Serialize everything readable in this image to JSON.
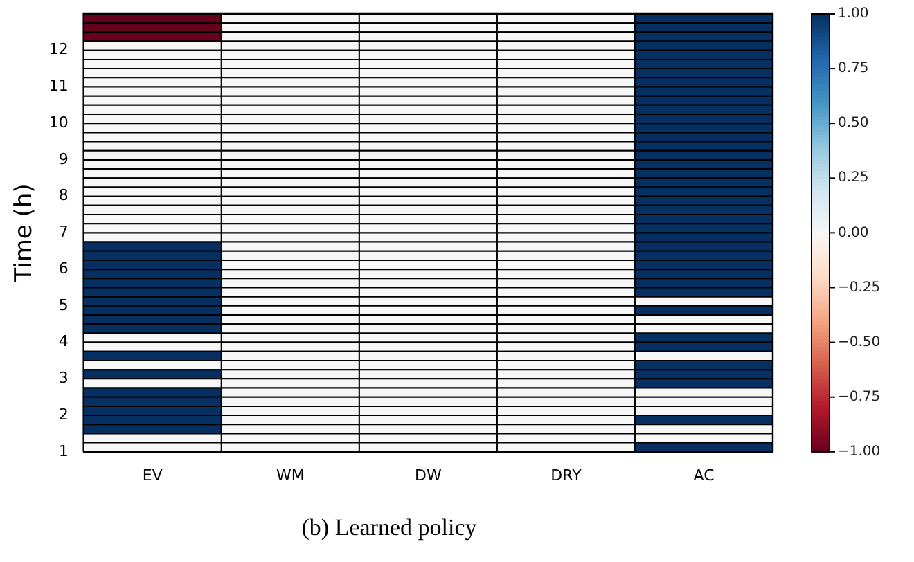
{
  "chart_data": {
    "type": "heatmap",
    "title": "(b) Learned policy",
    "ylabel": "Time (h)",
    "categories": [
      "EV",
      "WM",
      "DW",
      "DRY",
      "AC"
    ],
    "ylim": [
      1,
      13
    ],
    "yticks": [
      1,
      2,
      3,
      4,
      5,
      6,
      7,
      8,
      9,
      10,
      11,
      12
    ],
    "clim": [
      -1,
      1
    ],
    "cticks": [
      {
        "value": -1,
        "label": "−1.00"
      },
      {
        "value": -0.75,
        "label": "−0.75"
      },
      {
        "value": -0.5,
        "label": "−0.50"
      },
      {
        "value": -0.25,
        "label": "−0.25"
      },
      {
        "value": 0,
        "label": "0.00"
      },
      {
        "value": 0.25,
        "label": "0.25"
      },
      {
        "value": 0.5,
        "label": "0.50"
      },
      {
        "value": 0.75,
        "label": "0.75"
      },
      {
        "value": 1,
        "label": "1.00"
      }
    ],
    "cells": [
      [
        -1,
        0,
        0,
        0,
        1
      ],
      [
        -1,
        0,
        0,
        0,
        1
      ],
      [
        -1,
        0,
        0,
        0,
        1
      ],
      [
        0,
        0,
        0,
        0,
        1
      ],
      [
        0,
        0,
        0,
        0,
        1
      ],
      [
        0,
        0,
        0,
        0,
        1
      ],
      [
        0,
        0,
        0,
        0,
        1
      ],
      [
        0,
        0,
        0,
        0,
        1
      ],
      [
        0,
        0,
        0,
        0,
        1
      ],
      [
        0,
        0,
        0,
        0,
        1
      ],
      [
        0,
        0,
        0,
        0,
        1
      ],
      [
        0,
        0,
        0,
        0,
        1
      ],
      [
        0,
        0,
        0,
        0,
        1
      ],
      [
        0,
        0,
        0,
        0,
        1
      ],
      [
        0,
        0,
        0,
        0,
        1
      ],
      [
        0,
        0,
        0,
        0,
        1
      ],
      [
        0,
        0,
        0,
        0,
        1
      ],
      [
        0,
        0,
        0,
        0,
        1
      ],
      [
        0,
        0,
        0,
        0,
        1
      ],
      [
        0,
        0,
        0,
        0,
        1
      ],
      [
        0,
        0,
        0,
        0,
        1
      ],
      [
        0,
        0,
        0,
        0,
        1
      ],
      [
        0,
        0,
        0,
        0,
        1
      ],
      [
        0,
        0,
        0,
        0,
        1
      ],
      [
        0,
        0,
        0,
        0,
        1
      ],
      [
        1,
        0,
        0,
        0,
        1
      ],
      [
        1,
        0,
        0,
        0,
        1
      ],
      [
        1,
        0,
        0,
        0,
        1
      ],
      [
        1,
        0,
        0,
        0,
        1
      ],
      [
        1,
        0,
        0,
        0,
        1
      ],
      [
        1,
        0,
        0,
        0,
        1
      ],
      [
        1,
        0,
        0,
        0,
        0
      ],
      [
        1,
        0,
        0,
        0,
        1
      ],
      [
        1,
        0,
        0,
        0,
        0
      ],
      [
        1,
        0,
        0,
        0,
        0
      ],
      [
        0,
        0,
        0,
        0,
        1
      ],
      [
        0,
        0,
        0,
        0,
        1
      ],
      [
        1,
        0,
        0,
        0,
        0
      ],
      [
        0,
        0,
        0,
        0,
        1
      ],
      [
        1,
        0,
        0,
        0,
        1
      ],
      [
        0,
        0,
        0,
        0,
        1
      ],
      [
        1,
        0,
        0,
        0,
        0
      ],
      [
        1,
        0,
        0,
        0,
        0
      ],
      [
        1,
        0,
        0,
        0,
        0
      ],
      [
        1,
        0,
        0,
        0,
        1
      ],
      [
        1,
        0,
        0,
        0,
        0
      ],
      [
        0,
        0,
        0,
        0,
        0
      ],
      [
        0,
        0,
        0,
        0,
        1
      ]
    ]
  }
}
